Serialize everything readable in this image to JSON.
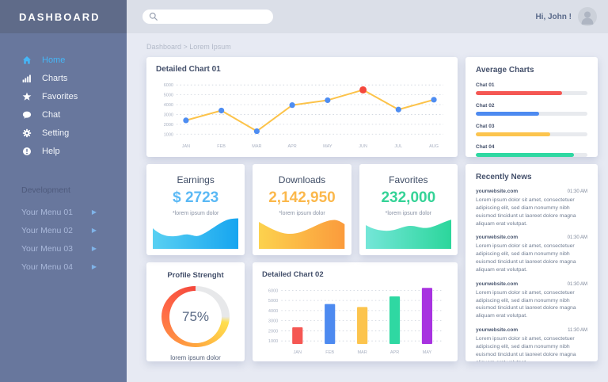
{
  "sidebar": {
    "title": "DASHBOARD",
    "items": [
      {
        "label": "Home"
      },
      {
        "label": "Charts"
      },
      {
        "label": "Favorites"
      },
      {
        "label": "Chat"
      },
      {
        "label": "Setting"
      },
      {
        "label": "Help"
      }
    ],
    "section_label": "Development",
    "dev_items": [
      {
        "label": "Your Menu 01"
      },
      {
        "label": "Your Menu 02"
      },
      {
        "label": "Your Menu 03"
      },
      {
        "label": "Your Menu 04"
      }
    ]
  },
  "topbar": {
    "greeting": "Hi, John !",
    "search_placeholder": ""
  },
  "breadcrumb": "Dashboard > Lorem Ipsum",
  "average_charts": {
    "title": "Average Charts",
    "track_color": "#e8eaee",
    "bars": [
      {
        "label": "Chat 01",
        "percent": 77,
        "color": "#f55753"
      },
      {
        "label": "Chat 02",
        "percent": 57,
        "color": "#4d8af0"
      },
      {
        "label": "Chat 03",
        "percent": 67,
        "color": "#fcc44d"
      },
      {
        "label": "Chat 04",
        "percent": 88,
        "color": "#2fd8a2"
      }
    ]
  },
  "stats": [
    {
      "title": "Earnings",
      "value": "$ 2723",
      "caption": "*lorem ipsum dolor",
      "value_color": "#5bb9f5",
      "wave_from": "#59d0f2",
      "wave_to": "#16a5f0"
    },
    {
      "title": "Downloads",
      "value": "2,142,950",
      "caption": "*lorem ipsum dolor",
      "value_color": "#fbb84c",
      "wave_from": "#fcd24e",
      "wave_to": "#fb9b3c"
    },
    {
      "title": "Favorites",
      "value": "232,000",
      "caption": "*lorem ipsum dolor",
      "value_color": "#35d397",
      "wave_from": "#74e6d8",
      "wave_to": "#2bd69b"
    }
  ],
  "news": {
    "title": "Recently News",
    "items": [
      {
        "site": "yourwebsite.com",
        "time": "01:30 AM",
        "body": "Lorem ipsum dolor sit amet, consectetuer adipiscing elit, sed diam nonummy nibh euismod tincidunt ut laoreet dolore magna aliquam erat volutpat."
      },
      {
        "site": "yourwebsite.com",
        "time": "01:30 AM",
        "body": "Lorem ipsum dolor sit amet, consectetuer adipiscing elit, sed diam nonummy nibh euismod tincidunt ut laoreet dolore magna aliquam erat volutpat."
      },
      {
        "site": "yourwebsite.com",
        "time": "01:30 AM",
        "body": "Lorem ipsum dolor sit amet, consectetuer adipiscing elit, sed diam nonummy nibh euismod tincidunt ut laoreet dolore magna aliquam erat volutpat."
      },
      {
        "site": "yourwebsite.com",
        "time": "11:30 AM",
        "body": "Lorem ipsum dolor sit amet, consectetuer adipiscing elit, sed diam nonummy nibh euismod tincidunt ut laoreet dolore magna aliquam erat volutpat."
      }
    ]
  },
  "chart_data": [
    {
      "type": "line",
      "title": "Detailed Chart 01",
      "categories": [
        "JAN",
        "FEB",
        "MAR",
        "APR",
        "MAY",
        "JUN",
        "JUL",
        "AUG"
      ],
      "values": [
        2400,
        3400,
        1300,
        3950,
        4450,
        5500,
        3500,
        4500
      ],
      "ticks": [
        1000,
        2000,
        3000,
        4000,
        5000,
        6000
      ],
      "ylim": [
        1000,
        6000
      ],
      "grid": true,
      "line_color": "#fcc34a",
      "point_color": "#4e8df2",
      "highlight_index": 5,
      "highlight_color": "#f4473c",
      "xlabel": "",
      "ylabel": ""
    },
    {
      "type": "bar",
      "title": "Detailed Chart 02",
      "categories": [
        "JAN",
        "FEB",
        "MAR",
        "APR",
        "MAY"
      ],
      "values": [
        2350,
        4650,
        4350,
        5400,
        6250
      ],
      "bar_colors": [
        "#f55753",
        "#4d8af0",
        "#fcc44d",
        "#2fd8a2",
        "#a832e0"
      ],
      "ticks": [
        1000,
        2000,
        3000,
        4000,
        5000,
        6000
      ],
      "ylim": [
        1000,
        6000
      ],
      "grid": true,
      "xlabel": "",
      "ylabel": ""
    },
    {
      "type": "donut",
      "title": "Profile Strenght",
      "value": 75,
      "display": "75%",
      "caption": "lorem ipsum dolor",
      "colors": [
        "#ffdf4d",
        "#ffa63f",
        "#ff6b47",
        "#f4473c"
      ],
      "track_color": "#e7e8ea"
    }
  ]
}
